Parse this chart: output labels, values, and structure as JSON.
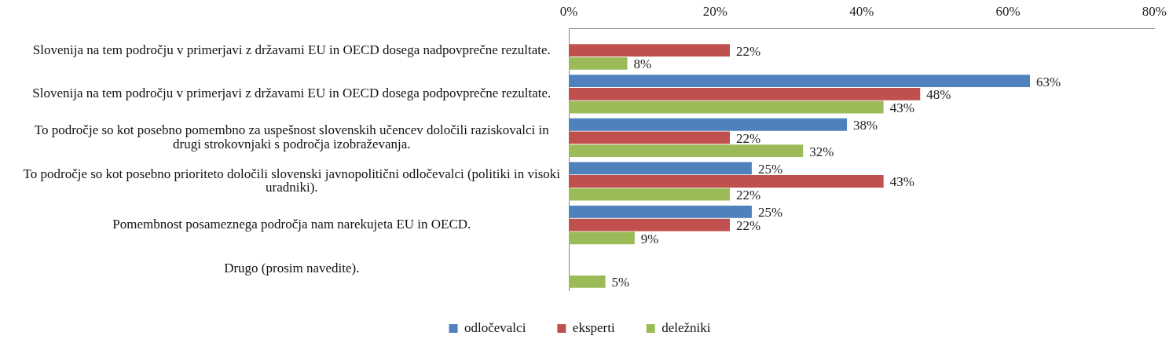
{
  "chart_data": {
    "type": "bar",
    "orientation": "horizontal",
    "legend": "bottom",
    "categories": [
      "Slovenija na tem področju v primerjavi z državami EU in OECD dosega nadpovprečne rezultate.",
      "Slovenija na tem področju v primerjavi z državami EU in OECD dosega podpovprečne rezultate.",
      "To področje so kot posebno pomembno za uspešnost slovenskih učencev določili raziskovalci in drugi strokovnjaki s področja izobraževanja.",
      "To področje so kot posebno prioriteto določili slovenski javnopolitični odločevalci (politiki in visoki uradniki).",
      "Pomembnost posameznega področja nam narekujeta EU in OECD.",
      "Drugo (prosim navedite)."
    ],
    "xlim": [
      0,
      80
    ],
    "xticks": [
      {
        "value": 0,
        "label": "0%"
      },
      {
        "value": 20,
        "label": "20%"
      },
      {
        "value": 40,
        "label": "40%"
      },
      {
        "value": 60,
        "label": "60%"
      },
      {
        "value": 80,
        "label": "80%"
      }
    ],
    "series": [
      {
        "name": "odločevalci",
        "color": "#4f81bd",
        "values": [
          null,
          63,
          38,
          25,
          25,
          null
        ],
        "value_labels": [
          null,
          "63%",
          "38%",
          "25%",
          "25%",
          null
        ]
      },
      {
        "name": "eksperti",
        "color": "#c0504d",
        "values": [
          22,
          48,
          22,
          43,
          22,
          null
        ],
        "value_labels": [
          "22%",
          "48%",
          "22%",
          "43%",
          "22%",
          null
        ]
      },
      {
        "name": "deležniki",
        "color": "#9bbb59",
        "values": [
          8,
          43,
          32,
          22,
          9,
          5
        ],
        "value_labels": [
          "8%",
          "43%",
          "32%",
          "22%",
          "9%",
          "5%"
        ]
      }
    ]
  }
}
